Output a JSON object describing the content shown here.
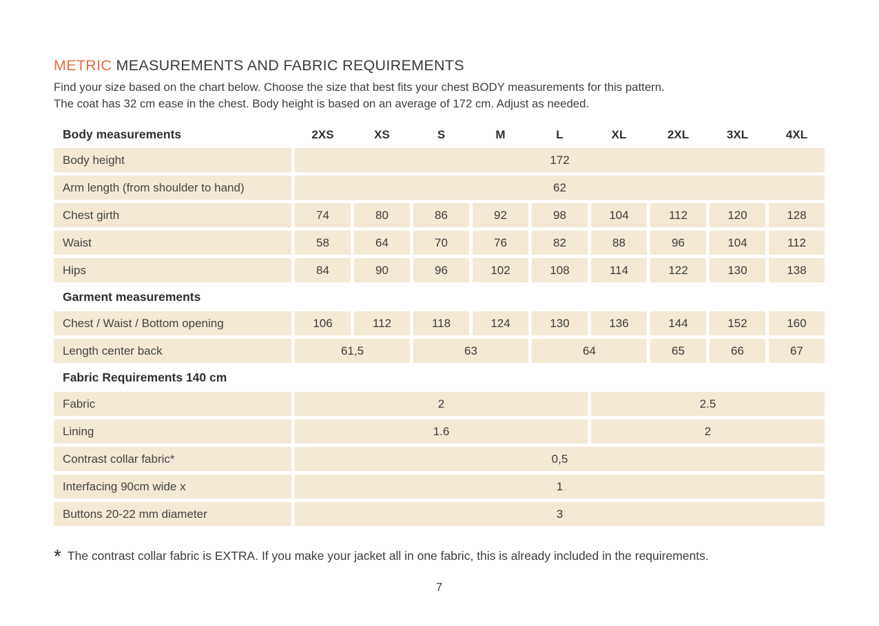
{
  "page": {
    "title_highlight": "METRIC",
    "title_rest": " MEASUREMENTS AND FABRIC REQUIREMENTS",
    "intro_line1": "Find your size based on the chart below. Choose the size that best fits your chest BODY measurements for this pattern.",
    "intro_line2": "The coat has 32 cm ease in the chest. Body height is based on an average of 172 cm. Adjust as needed.",
    "footnote_marker": "*",
    "footnote_text": "The contrast collar fabric is EXTRA. If you make your jacket all in one fabric, this is already included in the requirements.",
    "page_number": "7"
  },
  "colors": {
    "accent_orange": "#e0703f",
    "cell_beige": "#f3e9d5",
    "text_dark": "#3c3c3c"
  },
  "table": {
    "header_label": "Body measurements",
    "sizes": [
      "2XS",
      "XS",
      "S",
      "M",
      "L",
      "XL",
      "2XL",
      "3XL",
      "4XL"
    ],
    "rows": [
      {
        "type": "data",
        "label": "Body height",
        "cells": [
          {
            "span": 9,
            "value": "172"
          }
        ]
      },
      {
        "type": "data",
        "label": "Arm length (from shoulder to hand)",
        "cells": [
          {
            "span": 9,
            "value": "62"
          }
        ]
      },
      {
        "type": "data",
        "label": "Chest girth",
        "cells": [
          {
            "span": 1,
            "value": "74"
          },
          {
            "span": 1,
            "value": "80"
          },
          {
            "span": 1,
            "value": "86"
          },
          {
            "span": 1,
            "value": "92"
          },
          {
            "span": 1,
            "value": "98"
          },
          {
            "span": 1,
            "value": "104"
          },
          {
            "span": 1,
            "value": "112"
          },
          {
            "span": 1,
            "value": "120"
          },
          {
            "span": 1,
            "value": "128"
          }
        ]
      },
      {
        "type": "data",
        "label": "Waist",
        "cells": [
          {
            "span": 1,
            "value": "58"
          },
          {
            "span": 1,
            "value": "64"
          },
          {
            "span": 1,
            "value": "70"
          },
          {
            "span": 1,
            "value": "76"
          },
          {
            "span": 1,
            "value": "82"
          },
          {
            "span": 1,
            "value": "88"
          },
          {
            "span": 1,
            "value": "96"
          },
          {
            "span": 1,
            "value": "104"
          },
          {
            "span": 1,
            "value": "112"
          }
        ]
      },
      {
        "type": "data",
        "label": "Hips",
        "cells": [
          {
            "span": 1,
            "value": "84"
          },
          {
            "span": 1,
            "value": "90"
          },
          {
            "span": 1,
            "value": "96"
          },
          {
            "span": 1,
            "value": "102"
          },
          {
            "span": 1,
            "value": "108"
          },
          {
            "span": 1,
            "value": "114"
          },
          {
            "span": 1,
            "value": "122"
          },
          {
            "span": 1,
            "value": "130"
          },
          {
            "span": 1,
            "value": "138"
          }
        ]
      },
      {
        "type": "section",
        "label": "Garment measurements"
      },
      {
        "type": "data",
        "label": "Chest / Waist / Bottom opening",
        "cells": [
          {
            "span": 1,
            "value": "106"
          },
          {
            "span": 1,
            "value": "112"
          },
          {
            "span": 1,
            "value": "118"
          },
          {
            "span": 1,
            "value": "124"
          },
          {
            "span": 1,
            "value": "130"
          },
          {
            "span": 1,
            "value": "136"
          },
          {
            "span": 1,
            "value": "144"
          },
          {
            "span": 1,
            "value": "152"
          },
          {
            "span": 1,
            "value": "160"
          }
        ]
      },
      {
        "type": "data",
        "label": "Length center back",
        "cells": [
          {
            "span": 2,
            "value": "61,5"
          },
          {
            "span": 2,
            "value": "63"
          },
          {
            "span": 2,
            "value": "64"
          },
          {
            "span": 1,
            "value": "65"
          },
          {
            "span": 1,
            "value": "66"
          },
          {
            "span": 1,
            "value": "67"
          }
        ]
      },
      {
        "type": "section",
        "label": "Fabric Requirements 140 cm"
      },
      {
        "type": "data",
        "label": "Fabric",
        "cells": [
          {
            "span": 5,
            "value": "2"
          },
          {
            "span": 4,
            "value": "2.5"
          }
        ]
      },
      {
        "type": "data",
        "label": "Lining",
        "cells": [
          {
            "span": 5,
            "value": "1.6"
          },
          {
            "span": 4,
            "value": "2"
          }
        ]
      },
      {
        "type": "data",
        "label": "Contrast collar fabric*",
        "cells": [
          {
            "span": 9,
            "value": "0,5"
          }
        ]
      },
      {
        "type": "data",
        "label": "Interfacing  90cm wide x",
        "cells": [
          {
            "span": 9,
            "value": "1"
          }
        ]
      },
      {
        "type": "data",
        "label": "Buttons 20-22 mm diameter",
        "cells": [
          {
            "span": 9,
            "value": "3"
          }
        ]
      }
    ]
  }
}
